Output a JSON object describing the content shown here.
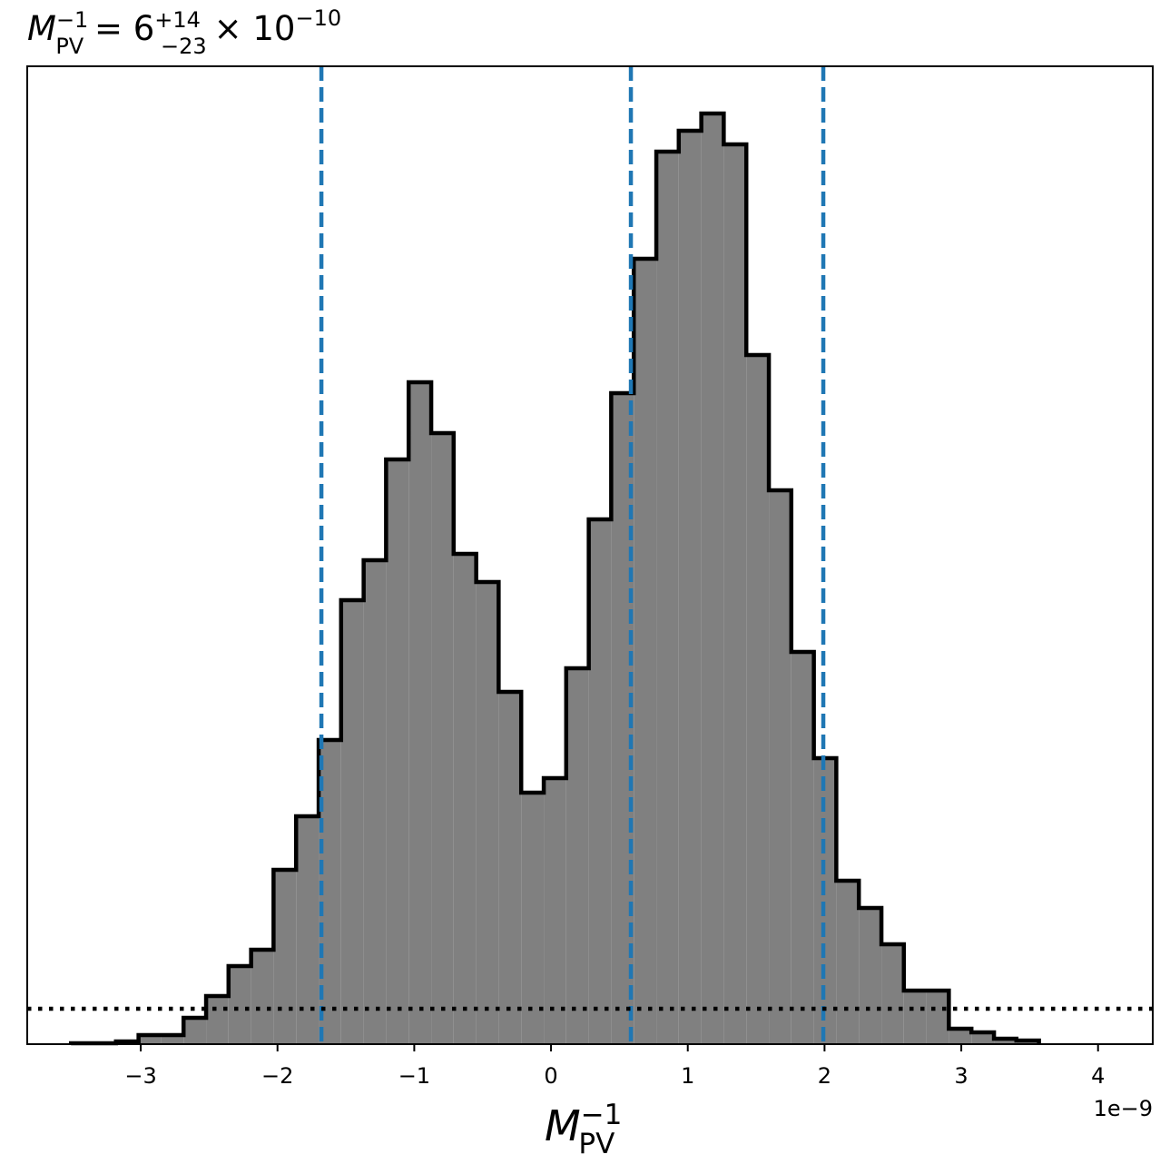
{
  "chart_data": {
    "type": "histogram",
    "title": {
      "symbol": "M",
      "sub": "PV",
      "sup": "−1",
      "eq": " = 6",
      "upper": "+14",
      "lower": "−23",
      "times": "× 10",
      "exp": "−10"
    },
    "xlabel": {
      "symbol": "M",
      "sub": "PV",
      "sup": "−1"
    },
    "offset_text": "1e−9",
    "bins": [
      -3.51,
      -3.345,
      -3.181,
      -3.016,
      -2.852,
      -2.687,
      -2.522,
      -2.358,
      -2.193,
      -2.029,
      -1.864,
      -1.699,
      -1.535,
      -1.37,
      -1.206,
      -1.041,
      -0.876,
      -0.712,
      -0.547,
      -0.383,
      -0.218,
      -0.053,
      0.111,
      0.276,
      0.44,
      0.605,
      0.77,
      0.934,
      1.099,
      1.263,
      1.428,
      1.593,
      1.757,
      1.922,
      2.086,
      2.251,
      2.416,
      2.58,
      2.745,
      2.909,
      3.074,
      3.239,
      3.403,
      3.568
    ],
    "values": [
      1,
      1,
      3,
      10,
      10,
      29,
      53,
      86,
      104,
      192,
      251,
      335,
      489,
      533,
      644,
      729,
      673,
      540,
      509,
      388,
      277,
      293,
      414,
      578,
      717,
      865,
      983,
      1006,
      1025,
      991,
      759,
      610,
      432,
      315,
      180,
      150,
      110,
      59,
      59,
      17,
      13,
      6,
      4
    ],
    "color": "#808080",
    "edge_color": "#000000",
    "vlines": [
      -1.679,
      0.584,
      1.991
    ],
    "vline_color": "#1f77b4",
    "hline": 39,
    "hline_color": "#000000",
    "xlim": [
      -3.83,
      4.4
    ],
    "ylim": [
      0,
      1077
    ],
    "xticks": [
      {
        "value": -3,
        "label": "−3"
      },
      {
        "value": -2,
        "label": "−2"
      },
      {
        "value": -1,
        "label": "−1"
      },
      0,
      1,
      2,
      3,
      4
    ]
  }
}
